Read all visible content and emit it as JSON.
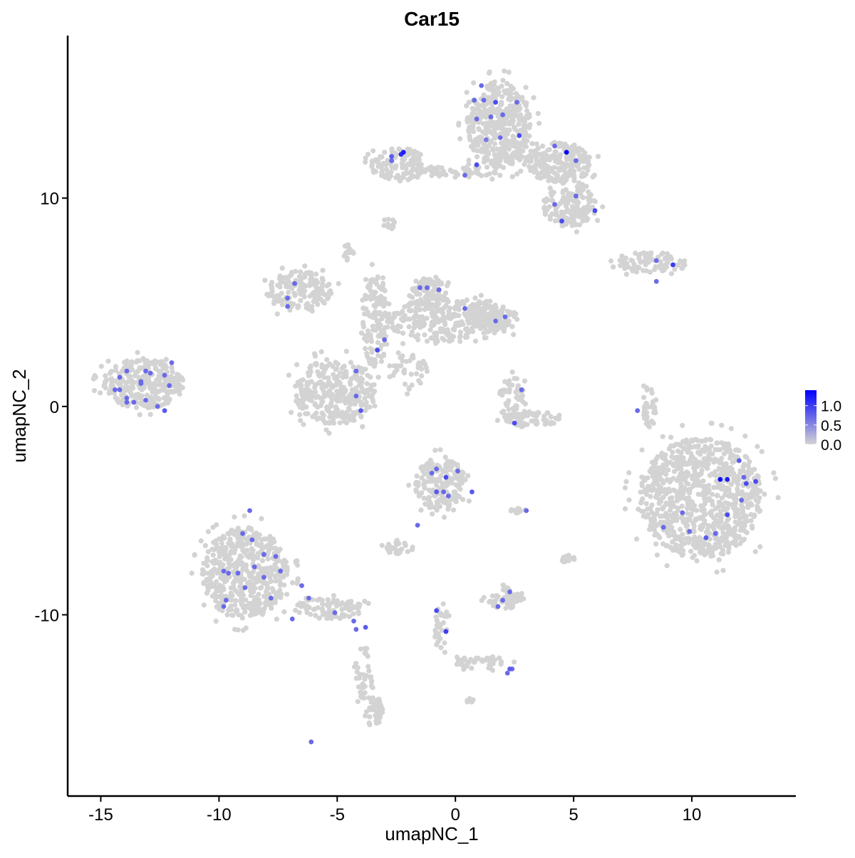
{
  "chart_data": {
    "type": "scatter",
    "title": "Car15",
    "xlabel": "umapNC_1",
    "ylabel": "umapNC_2",
    "xlim": [
      -16.4,
      14.4
    ],
    "ylim": [
      -18.7,
      17.8
    ],
    "xticks": [
      -15,
      -10,
      -5,
      0,
      5,
      10
    ],
    "yticks": [
      -10,
      0,
      10
    ],
    "grid": false,
    "colors": {
      "low": "#d3d3d3",
      "high": "#0000ff"
    },
    "legend": {
      "position": "right",
      "ticks": [
        "0.0",
        "0.5",
        "1.0"
      ],
      "range": [
        0,
        1.4
      ]
    },
    "background_clusters": [
      {
        "center": [
          1.84,
          13.5
        ],
        "spread": [
          1.36,
          2.1
        ],
        "n": 420
      },
      {
        "center": [
          4.4,
          11.7
        ],
        "spread": [
          1.35,
          1.0
        ],
        "n": 220
      },
      {
        "center": [
          4.85,
          9.6
        ],
        "spread": [
          1.1,
          1.0
        ],
        "n": 160
      },
      {
        "center": [
          0.0,
          11.3
        ],
        "spread": [
          1.8,
          0.3
        ],
        "n": 60
      },
      {
        "center": [
          -2.4,
          11.6
        ],
        "spread": [
          1.2,
          0.8
        ],
        "n": 120
      },
      {
        "center": [
          -2.8,
          8.75
        ],
        "spread": [
          0.3,
          0.3
        ],
        "n": 15
      },
      {
        "center": [
          8.2,
          6.9
        ],
        "spread": [
          1.7,
          0.5
        ],
        "n": 80
      },
      {
        "center": [
          -4.5,
          7.4
        ],
        "spread": [
          0.25,
          0.4
        ],
        "n": 15
      },
      {
        "center": [
          -6.6,
          5.5
        ],
        "spread": [
          1.4,
          1.0
        ],
        "n": 150
      },
      {
        "center": [
          -5.1,
          0.7
        ],
        "spread": [
          1.7,
          1.6
        ],
        "n": 320
      },
      {
        "center": [
          -3.4,
          4.1
        ],
        "spread": [
          0.6,
          2.2
        ],
        "n": 140
      },
      {
        "center": [
          -0.3,
          4.1
        ],
        "spread": [
          2.5,
          1.1
        ],
        "n": 300
      },
      {
        "center": [
          -1.2,
          5.5
        ],
        "spread": [
          0.8,
          0.8
        ],
        "n": 90
      },
      {
        "center": [
          1.5,
          4.3
        ],
        "spread": [
          1.1,
          0.6
        ],
        "n": 90
      },
      {
        "center": [
          -2.0,
          1.6
        ],
        "spread": [
          0.9,
          0.9
        ],
        "n": 40
      },
      {
        "center": [
          2.4,
          0.4
        ],
        "spread": [
          0.6,
          1.0
        ],
        "n": 50
      },
      {
        "center": [
          3.2,
          -0.6
        ],
        "spread": [
          1.2,
          0.4
        ],
        "n": 70
      },
      {
        "center": [
          8.2,
          0.0
        ],
        "spread": [
          0.3,
          1.0
        ],
        "n": 35
      },
      {
        "center": [
          -13.2,
          1.1
        ],
        "spread": [
          1.7,
          1.2
        ],
        "n": 300
      },
      {
        "center": [
          10.4,
          -4.4
        ],
        "spread": [
          2.6,
          2.9
        ],
        "n": 900
      },
      {
        "center": [
          -0.6,
          -3.7
        ],
        "spread": [
          1.1,
          1.3
        ],
        "n": 190
      },
      {
        "center": [
          -2.4,
          -6.8
        ],
        "spread": [
          0.6,
          0.3
        ],
        "n": 30
      },
      {
        "center": [
          -8.9,
          -8.0
        ],
        "spread": [
          1.8,
          2.2
        ],
        "n": 520
      },
      {
        "center": [
          -5.4,
          -9.7
        ],
        "spread": [
          1.5,
          0.5
        ],
        "n": 90
      },
      {
        "center": [
          -3.9,
          -13.0
        ],
        "spread": [
          0.4,
          1.5
        ],
        "n": 40
      },
      {
        "center": [
          -3.4,
          -14.7
        ],
        "spread": [
          0.35,
          0.8
        ],
        "n": 45
      },
      {
        "center": [
          2.1,
          -9.2
        ],
        "spread": [
          0.8,
          0.5
        ],
        "n": 60
      },
      {
        "center": [
          -0.6,
          -10.6
        ],
        "spread": [
          0.3,
          1.2
        ],
        "n": 35
      },
      {
        "center": [
          1.2,
          -12.3
        ],
        "spread": [
          1.3,
          0.3
        ],
        "n": 45
      },
      {
        "center": [
          4.8,
          -7.3
        ],
        "spread": [
          0.3,
          0.3
        ],
        "n": 15
      },
      {
        "center": [
          2.6,
          -5.0
        ],
        "spread": [
          0.4,
          0.15
        ],
        "n": 12
      },
      {
        "center": [
          0.6,
          -14.1
        ],
        "spread": [
          0.2,
          0.1
        ],
        "n": 6
      }
    ],
    "points": [
      {
        "x": 1.1,
        "y": 15.4,
        "v": 0.7
      },
      {
        "x": 0.8,
        "y": 14.7,
        "v": 0.7
      },
      {
        "x": 1.2,
        "y": 14.7,
        "v": 0.7
      },
      {
        "x": 1.7,
        "y": 14.6,
        "v": 0.9
      },
      {
        "x": 1.5,
        "y": 13.9,
        "v": 0.7
      },
      {
        "x": 2.0,
        "y": 14.0,
        "v": 0.7
      },
      {
        "x": 0.9,
        "y": 13.8,
        "v": 0.7
      },
      {
        "x": 2.6,
        "y": 14.6,
        "v": 0.7
      },
      {
        "x": 1.3,
        "y": 12.8,
        "v": 0.6
      },
      {
        "x": 1.9,
        "y": 12.9,
        "v": 0.7
      },
      {
        "x": 2.7,
        "y": 13.0,
        "v": 0.9
      },
      {
        "x": 0.4,
        "y": 11.1,
        "v": 0.7
      },
      {
        "x": 0.9,
        "y": 11.6,
        "v": 0.9
      },
      {
        "x": -2.2,
        "y": 12.2,
        "v": 1.2
      },
      {
        "x": -2.3,
        "y": 12.1,
        "v": 1.1
      },
      {
        "x": -2.7,
        "y": 12.0,
        "v": 0.8
      },
      {
        "x": -2.7,
        "y": 11.8,
        "v": 0.7
      },
      {
        "x": 4.7,
        "y": 12.2,
        "v": 1.4
      },
      {
        "x": 4.2,
        "y": 12.5,
        "v": 0.7
      },
      {
        "x": 5.1,
        "y": 11.8,
        "v": 0.7
      },
      {
        "x": 4.2,
        "y": 9.7,
        "v": 0.7
      },
      {
        "x": 4.5,
        "y": 8.9,
        "v": 0.9
      },
      {
        "x": 5.1,
        "y": 10.1,
        "v": 0.7
      },
      {
        "x": 5.9,
        "y": 9.4,
        "v": 0.9
      },
      {
        "x": 8.5,
        "y": 7.0,
        "v": 0.7
      },
      {
        "x": 9.2,
        "y": 6.8,
        "v": 1.0
      },
      {
        "x": 8.5,
        "y": 6.0,
        "v": 0.7
      },
      {
        "x": -7.1,
        "y": 5.2,
        "v": 0.7
      },
      {
        "x": -6.8,
        "y": 5.9,
        "v": 0.7
      },
      {
        "x": -7.1,
        "y": 4.8,
        "v": 0.7
      },
      {
        "x": -1.5,
        "y": 5.7,
        "v": 0.7
      },
      {
        "x": -1.2,
        "y": 5.7,
        "v": 0.7
      },
      {
        "x": -0.7,
        "y": 5.6,
        "v": 0.7
      },
      {
        "x": 0.4,
        "y": 4.7,
        "v": 0.7
      },
      {
        "x": 1.7,
        "y": 4.1,
        "v": 0.7
      },
      {
        "x": 2.1,
        "y": 4.3,
        "v": 0.7
      },
      {
        "x": -3.0,
        "y": 3.2,
        "v": 0.7
      },
      {
        "x": -3.3,
        "y": 2.7,
        "v": 0.9
      },
      {
        "x": -4.2,
        "y": 1.7,
        "v": 0.7
      },
      {
        "x": -4.2,
        "y": 0.5,
        "v": 0.7
      },
      {
        "x": -4.0,
        "y": -0.2,
        "v": 0.8
      },
      {
        "x": 2.8,
        "y": 0.8,
        "v": 0.7
      },
      {
        "x": 2.5,
        "y": -0.8,
        "v": 0.9
      },
      {
        "x": 7.7,
        "y": -0.2,
        "v": 0.7
      },
      {
        "x": -13.9,
        "y": 1.7,
        "v": 0.7
      },
      {
        "x": -13.1,
        "y": 1.7,
        "v": 0.7
      },
      {
        "x": -12.9,
        "y": 1.6,
        "v": 0.7
      },
      {
        "x": -14.2,
        "y": 1.4,
        "v": 0.7
      },
      {
        "x": -13.3,
        "y": 1.2,
        "v": 0.7
      },
      {
        "x": -13.3,
        "y": 1.1,
        "v": 0.7
      },
      {
        "x": -12.3,
        "y": 1.5,
        "v": 0.7
      },
      {
        "x": -12.0,
        "y": 2.1,
        "v": 0.7
      },
      {
        "x": -12.1,
        "y": 1.0,
        "v": 0.7
      },
      {
        "x": -14.4,
        "y": 0.8,
        "v": 0.7
      },
      {
        "x": -14.2,
        "y": 0.8,
        "v": 0.7
      },
      {
        "x": -13.9,
        "y": 0.4,
        "v": 0.7
      },
      {
        "x": -13.9,
        "y": 0.2,
        "v": 0.7
      },
      {
        "x": -13.6,
        "y": 0.2,
        "v": 0.7
      },
      {
        "x": -13.1,
        "y": 0.3,
        "v": 0.7
      },
      {
        "x": -12.6,
        "y": 0.0,
        "v": 0.7
      },
      {
        "x": -12.3,
        "y": -0.2,
        "v": 0.8
      },
      {
        "x": -0.8,
        "y": -3.0,
        "v": 0.7
      },
      {
        "x": -0.4,
        "y": -3.4,
        "v": 0.9
      },
      {
        "x": -1.0,
        "y": -3.2,
        "v": 0.7
      },
      {
        "x": 0.1,
        "y": -3.1,
        "v": 0.7
      },
      {
        "x": -0.8,
        "y": -4.1,
        "v": 0.8
      },
      {
        "x": -0.5,
        "y": -4.1,
        "v": 0.7
      },
      {
        "x": -0.3,
        "y": -4.3,
        "v": 0.7
      },
      {
        "x": 0.7,
        "y": -4.1,
        "v": 0.8
      },
      {
        "x": 3.0,
        "y": -5.0,
        "v": 0.7
      },
      {
        "x": -1.6,
        "y": -5.7,
        "v": 0.7
      },
      {
        "x": -8.7,
        "y": -5.0,
        "v": 0.7
      },
      {
        "x": -9.0,
        "y": -6.1,
        "v": 0.7
      },
      {
        "x": -8.6,
        "y": -6.4,
        "v": 0.7
      },
      {
        "x": -8.1,
        "y": -7.1,
        "v": 0.7
      },
      {
        "x": -7.6,
        "y": -7.2,
        "v": 0.7
      },
      {
        "x": -7.4,
        "y": -7.9,
        "v": 0.7
      },
      {
        "x": -8.5,
        "y": -7.7,
        "v": 0.7
      },
      {
        "x": -8.1,
        "y": -8.2,
        "v": 0.7
      },
      {
        "x": -9.8,
        "y": -7.9,
        "v": 0.7
      },
      {
        "x": -9.6,
        "y": -8.0,
        "v": 0.7
      },
      {
        "x": -9.2,
        "y": -8.0,
        "v": 0.7
      },
      {
        "x": -8.9,
        "y": -8.7,
        "v": 0.7
      },
      {
        "x": -9.7,
        "y": -9.3,
        "v": 0.7
      },
      {
        "x": -9.8,
        "y": -9.6,
        "v": 0.7
      },
      {
        "x": -7.8,
        "y": -9.2,
        "v": 0.7
      },
      {
        "x": -6.5,
        "y": -8.6,
        "v": 0.7
      },
      {
        "x": -6.2,
        "y": -9.2,
        "v": 0.7
      },
      {
        "x": -6.9,
        "y": -10.2,
        "v": 0.7
      },
      {
        "x": -4.3,
        "y": -10.3,
        "v": 0.7
      },
      {
        "x": -4.2,
        "y": -10.7,
        "v": 0.7
      },
      {
        "x": -3.8,
        "y": -10.6,
        "v": 0.8
      },
      {
        "x": -5.1,
        "y": -9.9,
        "v": 0.7
      },
      {
        "x": -0.8,
        "y": -9.8,
        "v": 0.9
      },
      {
        "x": -0.4,
        "y": -10.8,
        "v": 1.0
      },
      {
        "x": 2.3,
        "y": -8.9,
        "v": 0.7
      },
      {
        "x": 2.0,
        "y": -9.3,
        "v": 0.7
      },
      {
        "x": 1.8,
        "y": -9.6,
        "v": 0.7
      },
      {
        "x": 2.3,
        "y": -12.6,
        "v": 0.8
      },
      {
        "x": 2.2,
        "y": -12.8,
        "v": 0.7
      },
      {
        "x": 2.4,
        "y": -12.6,
        "v": 0.7
      },
      {
        "x": -6.1,
        "y": -16.1,
        "v": 0.7
      },
      {
        "x": 12.0,
        "y": -2.6,
        "v": 0.8
      },
      {
        "x": 11.5,
        "y": -3.5,
        "v": 1.2
      },
      {
        "x": 11.2,
        "y": -3.5,
        "v": 1.3
      },
      {
        "x": 12.2,
        "y": -3.4,
        "v": 0.7
      },
      {
        "x": 12.7,
        "y": -3.6,
        "v": 0.9
      },
      {
        "x": 12.3,
        "y": -3.7,
        "v": 0.9
      },
      {
        "x": 11.5,
        "y": -5.2,
        "v": 0.9
      },
      {
        "x": 12.1,
        "y": -4.5,
        "v": 0.7
      },
      {
        "x": 9.6,
        "y": -5.1,
        "v": 0.7
      },
      {
        "x": 9.9,
        "y": -6.0,
        "v": 0.7
      },
      {
        "x": 10.6,
        "y": -6.3,
        "v": 0.8
      },
      {
        "x": 11.0,
        "y": -6.1,
        "v": 0.7
      },
      {
        "x": 8.8,
        "y": -5.8,
        "v": 0.7
      }
    ]
  }
}
